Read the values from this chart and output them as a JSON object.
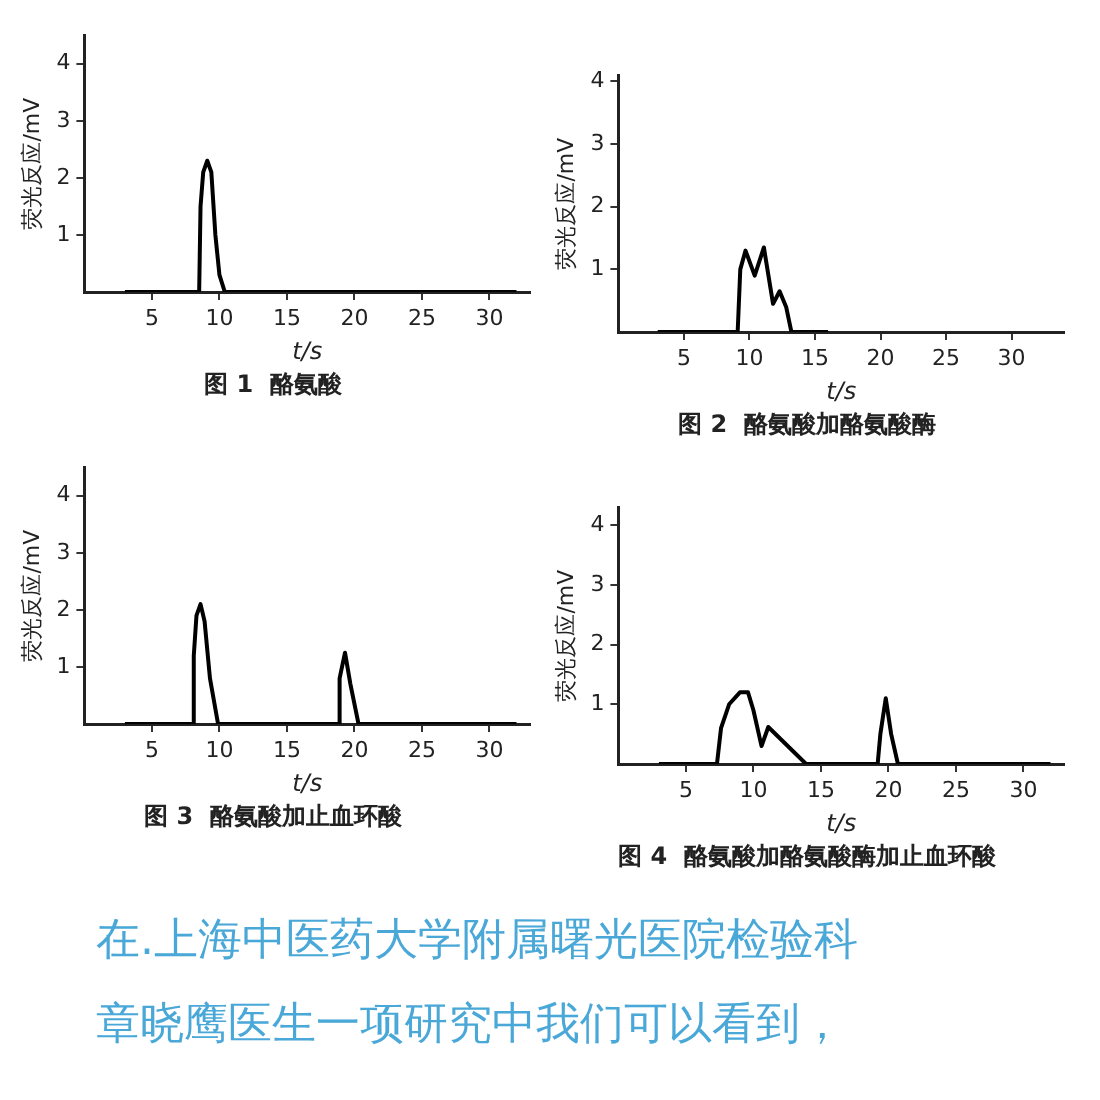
{
  "chart_data": [
    {
      "type": "line",
      "title": "图 1  酪氨酸",
      "xlabel": "t/s",
      "ylabel": "荧光反应/mV",
      "xlim": [
        0,
        33
      ],
      "ylim": [
        0,
        4.5
      ],
      "xticks": [
        5,
        10,
        15,
        20,
        25,
        30
      ],
      "yticks": [
        1,
        2,
        3,
        4
      ],
      "series": [
        {
          "color": "#000000",
          "x": [
            3,
            8.5,
            8.6,
            8.8,
            9.1,
            9.4,
            9.7,
            10,
            10.4,
            32
          ],
          "values": [
            0,
            0,
            1.5,
            2.1,
            2.3,
            2.1,
            1.0,
            0.3,
            0,
            0
          ]
        }
      ]
    },
    {
      "type": "line",
      "title": "图 2  酪氨酸加酪氨酸酶",
      "xlabel": "t/s",
      "ylabel": "荧光反应/mV",
      "xlim": [
        0,
        34
      ],
      "ylim": [
        0,
        4.1
      ],
      "xticks": [
        5,
        10,
        15,
        20,
        25,
        30
      ],
      "yticks": [
        1,
        2,
        3,
        4
      ],
      "series": [
        {
          "color": "#000000",
          "x": [
            3,
            9.1,
            9.3,
            9.7,
            10.4,
            11.1,
            11.8,
            12.3,
            12.8,
            13.2,
            16
          ],
          "values": [
            0,
            0,
            1.0,
            1.3,
            0.9,
            1.35,
            0.45,
            0.65,
            0.4,
            0,
            0
          ]
        }
      ]
    },
    {
      "type": "line",
      "title": "图 3  酪氨酸加止血环酸",
      "xlabel": "t/s",
      "ylabel": "荧光反应/mV",
      "xlim": [
        0,
        33
      ],
      "ylim": [
        0,
        4.5
      ],
      "xticks": [
        5,
        10,
        15,
        20,
        25,
        30
      ],
      "yticks": [
        1,
        2,
        3,
        4
      ],
      "series": [
        {
          "color": "#000000",
          "x": [
            3,
            8.0,
            8.1,
            8.3,
            8.6,
            8.9,
            9.3,
            9.9,
            18.8,
            18.9,
            19.3,
            19.7,
            20.3,
            32
          ],
          "values": [
            0,
            0,
            1.2,
            1.9,
            2.1,
            1.8,
            0.8,
            0,
            0,
            0.8,
            1.25,
            0.7,
            0,
            0
          ]
        }
      ]
    },
    {
      "type": "line",
      "title": "图 4  酪氨酸加酪氨酸酶加止血环酸",
      "xlabel": "t/s",
      "ylabel": "荧光反应/mV",
      "xlim": [
        0,
        33
      ],
      "ylim": [
        0,
        4.3
      ],
      "xticks": [
        5,
        10,
        15,
        20,
        25,
        30
      ],
      "yticks": [
        1,
        2,
        3,
        4
      ],
      "series": [
        {
          "color": "#000000",
          "x": [
            3,
            7.3,
            7.6,
            8.2,
            9.0,
            9.6,
            10.0,
            10.6,
            11.1,
            13.9,
            19.2,
            19.4,
            19.8,
            20.2,
            20.7,
            32
          ],
          "values": [
            0,
            0,
            0.6,
            1.0,
            1.2,
            1.2,
            0.9,
            0.3,
            0.62,
            0,
            0,
            0.5,
            1.1,
            0.5,
            0,
            0
          ]
        }
      ]
    },
    {
      "type": "other",
      "annotations": [
        "在.上海中医药大学附属曙光医院检验科",
        "章晓鹰医生一项研究中我们可以看到，"
      ]
    }
  ]
}
